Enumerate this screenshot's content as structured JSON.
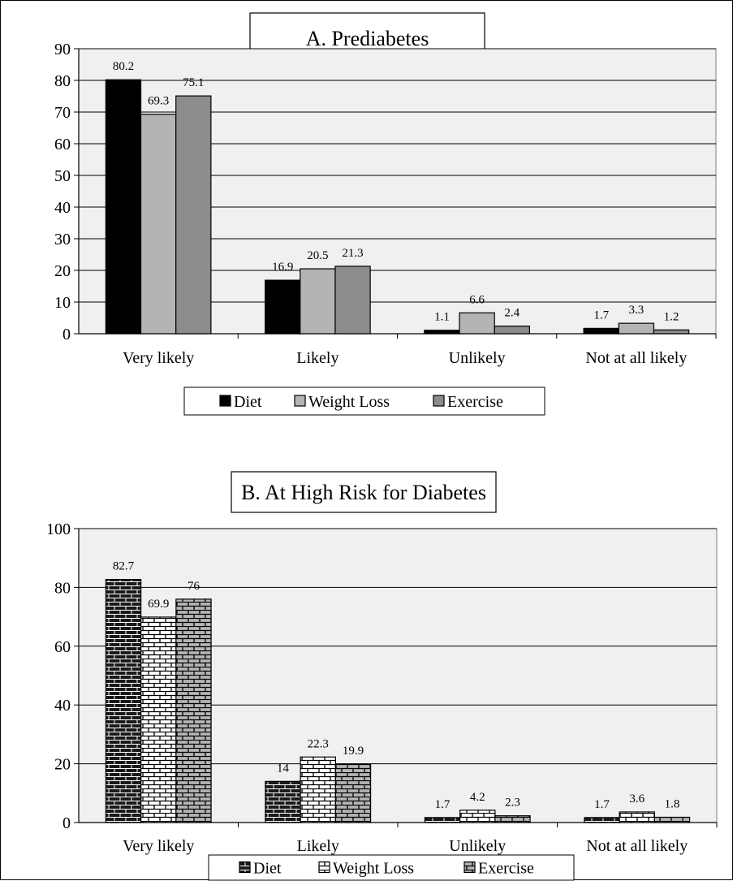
{
  "colors": {
    "plot_bg": "#f0f0f0",
    "diet": "#000000",
    "weight_loss": "#b4b4b4",
    "exercise": "#8c8c8c",
    "brick_dark": "#1a1a1a",
    "brick_white": "#ffffff",
    "brick_gray": "#b4b4b4"
  },
  "chart_data": [
    {
      "type": "bar",
      "title": "A.  Prediabetes",
      "categories": [
        "Very likely",
        "Likely",
        "Unlikely",
        "Not at all likely"
      ],
      "series": [
        {
          "name": "Diet",
          "values": [
            80.2,
            16.9,
            1.1,
            1.7
          ],
          "labels": [
            "80.2",
            "16.9",
            "1.1",
            "1.7"
          ]
        },
        {
          "name": "Weight Loss",
          "values": [
            69.3,
            20.5,
            6.6,
            3.3
          ],
          "labels": [
            "69.3",
            "20.5",
            "6.6",
            "3.3"
          ]
        },
        {
          "name": "Exercise",
          "values": [
            75.1,
            21.3,
            2.4,
            1.2
          ],
          "labels": [
            "75.1",
            "21.3",
            "2.4",
            "1.2"
          ]
        }
      ],
      "ylim": [
        0,
        90
      ],
      "yticks": [
        0,
        10,
        20,
        30,
        40,
        50,
        60,
        70,
        80,
        90
      ],
      "grid": true,
      "legend_position": "bottom",
      "fill_style": "solid"
    },
    {
      "type": "bar",
      "title": "B. At High Risk for Diabetes",
      "categories": [
        "Very likely",
        "Likely",
        "Unlikely",
        "Not at all likely"
      ],
      "series": [
        {
          "name": "Diet",
          "values": [
            82.7,
            14,
            1.7,
            1.7
          ],
          "labels": [
            "82.7",
            "14",
            "1.7",
            "1.7"
          ]
        },
        {
          "name": "Weight Loss",
          "values": [
            69.9,
            22.3,
            4.2,
            3.6
          ],
          "labels": [
            "69.9",
            "22.3",
            "4.2",
            "3.6"
          ]
        },
        {
          "name": "Exercise",
          "values": [
            76,
            19.9,
            2.3,
            1.8
          ],
          "labels": [
            "76",
            "19.9",
            "2.3",
            "1.8"
          ]
        }
      ],
      "ylim": [
        0,
        100
      ],
      "yticks": [
        0,
        20,
        40,
        60,
        80,
        100
      ],
      "grid": true,
      "legend_position": "bottom",
      "fill_style": "brick"
    }
  ]
}
